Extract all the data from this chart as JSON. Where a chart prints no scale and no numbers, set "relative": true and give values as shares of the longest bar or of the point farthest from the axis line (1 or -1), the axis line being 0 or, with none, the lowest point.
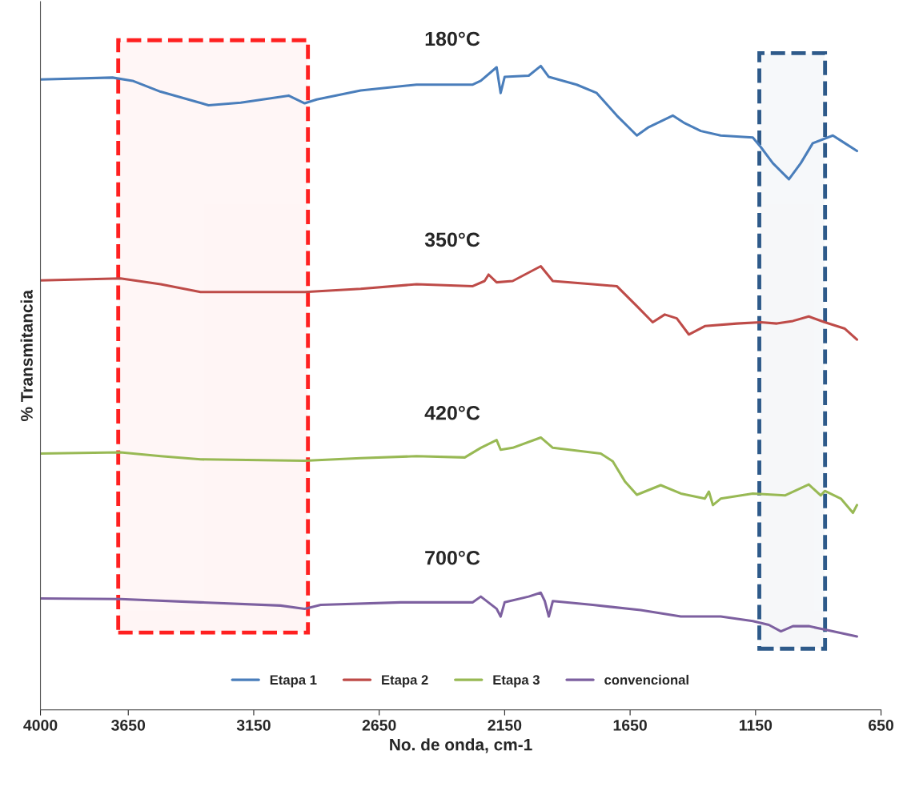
{
  "chart_data": {
    "type": "line",
    "relative": true,
    "xlabel": "No. de onda, cm-1",
    "ylabel": "% Transmitancia",
    "xlim": [
      4000,
      650
    ],
    "xticks": [
      4000,
      3650,
      3150,
      2650,
      2150,
      1650,
      1150,
      650
    ],
    "grid": false,
    "legend": "bottom",
    "marker": "none",
    "line_style": "solid",
    "series": [
      {
        "name": "Etapa 1",
        "color": "#4a7ebb",
        "x": [
          4000,
          3713,
          3633,
          3521,
          3330,
          3202,
          3011,
          2947,
          2899,
          2724,
          2501,
          2277,
          2245,
          2182,
          2166,
          2150,
          2054,
          2006,
          1974,
          1863,
          1783,
          1703,
          1623,
          1576,
          1480,
          1432,
          1368,
          1289,
          1161,
          1129,
          1081,
          1017,
          970,
          922,
          842,
          794,
          746
        ],
        "values": [
          0.979,
          0.982,
          0.977,
          0.96,
          0.939,
          0.943,
          0.954,
          0.942,
          0.948,
          0.962,
          0.971,
          0.971,
          0.977,
          0.998,
          0.958,
          0.983,
          0.985,
          1,
          0.983,
          0.971,
          0.958,
          0.923,
          0.892,
          0.905,
          0.923,
          0.911,
          0.899,
          0.892,
          0.889,
          0.874,
          0.849,
          0.824,
          0.849,
          0.88,
          0.892,
          0.88,
          0.868
        ]
      },
      {
        "name": "Etapa 2",
        "color": "#be4b48",
        "x": [
          4000,
          3681,
          3521,
          3362,
          3202,
          2947,
          2724,
          2501,
          2277,
          2230,
          2214,
          2182,
          2118,
          2006,
          1958,
          1799,
          1703,
          1623,
          1560,
          1512,
          1464,
          1416,
          1352,
          1225,
          1129,
          1065,
          1001,
          938,
          874,
          794,
          746
        ],
        "values": [
          0.667,
          0.67,
          0.661,
          0.649,
          0.649,
          0.649,
          0.654,
          0.661,
          0.658,
          0.666,
          0.676,
          0.664,
          0.666,
          0.689,
          0.666,
          0.661,
          0.658,
          0.627,
          0.602,
          0.614,
          0.608,
          0.583,
          0.596,
          0.6,
          0.602,
          0.6,
          0.604,
          0.611,
          0.602,
          0.592,
          0.575
        ]
      },
      {
        "name": "Etapa 3",
        "color": "#98b954",
        "x": [
          4000,
          3681,
          3521,
          3362,
          2947,
          2724,
          2501,
          2309,
          2245,
          2182,
          2166,
          2118,
          2006,
          1958,
          1767,
          1719,
          1671,
          1623,
          1528,
          1448,
          1352,
          1336,
          1320,
          1289,
          1161,
          1033,
          938,
          890,
          874,
          810,
          762,
          746
        ],
        "values": [
          0.398,
          0.4,
          0.394,
          0.389,
          0.387,
          0.391,
          0.394,
          0.392,
          0.407,
          0.419,
          0.404,
          0.407,
          0.423,
          0.407,
          0.398,
          0.386,
          0.355,
          0.334,
          0.349,
          0.336,
          0.328,
          0.339,
          0.318,
          0.328,
          0.336,
          0.333,
          0.35,
          0.333,
          0.34,
          0.328,
          0.306,
          0.318
        ]
      },
      {
        "name": "convencional",
        "color": "#7d60a0",
        "x": [
          4000,
          3681,
          3362,
          3043,
          2947,
          2883,
          2564,
          2277,
          2245,
          2182,
          2166,
          2150,
          2054,
          2006,
          1990,
          1974,
          1958,
          1799,
          1608,
          1448,
          1289,
          1161,
          1097,
          1049,
          1001,
          938,
          842,
          746
        ],
        "values": [
          0.173,
          0.172,
          0.167,
          0.162,
          0.157,
          0.163,
          0.167,
          0.167,
          0.176,
          0.157,
          0.145,
          0.167,
          0.176,
          0.182,
          0.169,
          0.145,
          0.169,
          0.163,
          0.155,
          0.145,
          0.145,
          0.138,
          0.132,
          0.122,
          0.13,
          0.13,
          0.122,
          0.114
        ]
      }
    ],
    "annotations": [
      "180°C",
      "350°C",
      "420°C",
      "700°C"
    ],
    "bands": [
      {
        "axis": "x",
        "from": 3690,
        "to": 2934,
        "color": "#ff2020"
      },
      {
        "axis": "x",
        "from": 1135,
        "to": 873,
        "color": "#2e5a8a"
      }
    ]
  }
}
